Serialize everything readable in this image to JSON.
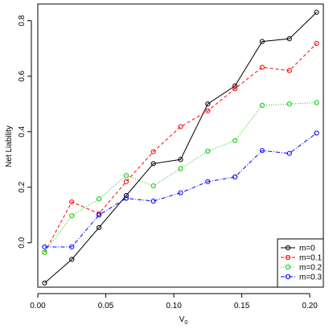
{
  "chart_data": {
    "type": "line",
    "title": "",
    "xlabel": "V",
    "xlabel_subscript": "0",
    "ylabel": "Net Liability",
    "xlim": [
      0.0,
      0.21
    ],
    "ylim": [
      -0.16,
      0.86
    ],
    "xticks": [
      0.0,
      0.05,
      0.1,
      0.15,
      0.2
    ],
    "xtick_labels": [
      "0.00",
      "0.05",
      "0.10",
      "0.15",
      "0.20"
    ],
    "yticks": [
      0.0,
      0.2,
      0.4,
      0.6,
      0.8
    ],
    "ytick_labels": [
      "0.0",
      "0.2",
      "0.4",
      "0.6",
      "0.8"
    ],
    "grid": false,
    "legend_position": "bottom-right",
    "x": [
      0.005,
      0.025,
      0.045,
      0.065,
      0.085,
      0.105,
      0.125,
      0.145,
      0.165,
      0.185,
      0.205
    ],
    "series": [
      {
        "name": "m=0",
        "color": "#000000",
        "dash": "",
        "values": [
          -0.145,
          -0.06,
          0.055,
          0.17,
          0.285,
          0.3,
          0.5,
          0.565,
          0.725,
          0.735,
          0.83
        ]
      },
      {
        "name": "m=0.1",
        "color": "#ff0000",
        "dash": "4,3",
        "values": [
          -0.035,
          0.147,
          0.105,
          0.22,
          0.328,
          0.418,
          0.475,
          0.555,
          0.632,
          0.62,
          0.718
        ]
      },
      {
        "name": "m=0.2",
        "color": "#00cc00",
        "dash": "1,2",
        "values": [
          -0.035,
          0.097,
          0.158,
          0.242,
          0.205,
          0.267,
          0.33,
          0.368,
          0.495,
          0.5,
          0.505
        ]
      },
      {
        "name": "m=0.3",
        "color": "#0000ff",
        "dash": "5,2,1,2",
        "values": [
          -0.015,
          -0.015,
          0.1,
          0.16,
          0.15,
          0.18,
          0.22,
          0.237,
          0.332,
          0.322,
          0.395
        ]
      }
    ]
  }
}
